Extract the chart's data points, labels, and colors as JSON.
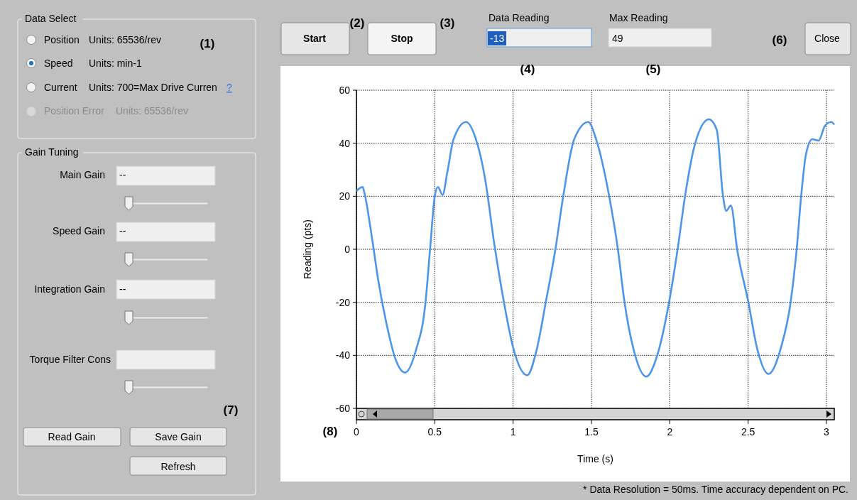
{
  "chart_data": {
    "type": "line",
    "xlabel": "Time (s)",
    "ylabel": "Reading (pts)",
    "xlim": [
      0,
      3.05
    ],
    "ylim": [
      -60,
      60
    ],
    "xticks": [
      0,
      0.5,
      1,
      1.5,
      2,
      2.5,
      3
    ],
    "yticks": [
      -60,
      -40,
      -20,
      0,
      20,
      40,
      60
    ],
    "grid": true,
    "line_style": "solid",
    "marker": "none",
    "series": [
      {
        "color": "#4d94eb",
        "x": [
          0,
          0.04,
          0.05,
          0.1,
          0.14,
          0.19,
          0.25,
          0.31,
          0.38,
          0.44,
          0.47,
          0.5,
          0.52,
          0.55,
          0.58,
          0.62,
          0.7,
          0.76,
          0.82,
          0.88,
          0.94,
          1,
          1.09,
          1.15,
          1.21,
          1.27,
          1.32,
          1.39,
          1.48,
          1.53,
          1.61,
          1.67,
          1.71,
          1.77,
          1.85,
          1.92,
          2,
          2.05,
          2.1,
          2.16,
          2.25,
          2.3,
          2.34,
          2.36,
          2.39,
          2.43,
          2.5,
          2.56,
          2.63,
          2.71,
          2.77,
          2.81,
          2.84,
          2.87,
          2.91,
          2.95,
          2.99,
          3.03,
          3.05
        ],
        "values": [
          22,
          23.5,
          21.5,
          4,
          -12,
          -27.5,
          -41.5,
          -46.5,
          -38,
          -20.5,
          0,
          20,
          23.5,
          20.5,
          29,
          41.5,
          48,
          42,
          27,
          2,
          -19.5,
          -37,
          -47.5,
          -38,
          -19.5,
          0,
          20,
          41.5,
          48,
          41.5,
          21,
          -0.5,
          -19.5,
          -38,
          -48,
          -40,
          -18.5,
          0,
          21,
          39.5,
          49,
          45,
          20,
          14.5,
          16.5,
          0,
          -19.5,
          -38,
          -47,
          -37,
          -20.5,
          0,
          21,
          36,
          41.5,
          41,
          46.5,
          48,
          47
        ]
      }
    ],
    "annotations": [
      "Data Select",
      "Position",
      "Units: 65536/rev",
      "Speed",
      "Units: min-1",
      "Current",
      "Units: 700=Max Drive Curren",
      "?",
      "Position Error",
      "Units: 65536/rev",
      "(1)",
      "Gain Tuning",
      "Main Gain",
      "--",
      "Speed Gain",
      "--",
      "Integration Gain",
      "--",
      "Torque Filter Cons",
      "(7)",
      "Read Gain",
      "Save Gain",
      "Refresh",
      "Start",
      "(2)",
      "Stop",
      "(3)",
      "Data Reading",
      "-13",
      "Max Reading",
      "49",
      "(4)",
      "(5)",
      "(6)",
      "Close",
      "(8)",
      "* Data Resolution = 50ms.  Time accuracy dependent on PC."
    ]
  }
}
